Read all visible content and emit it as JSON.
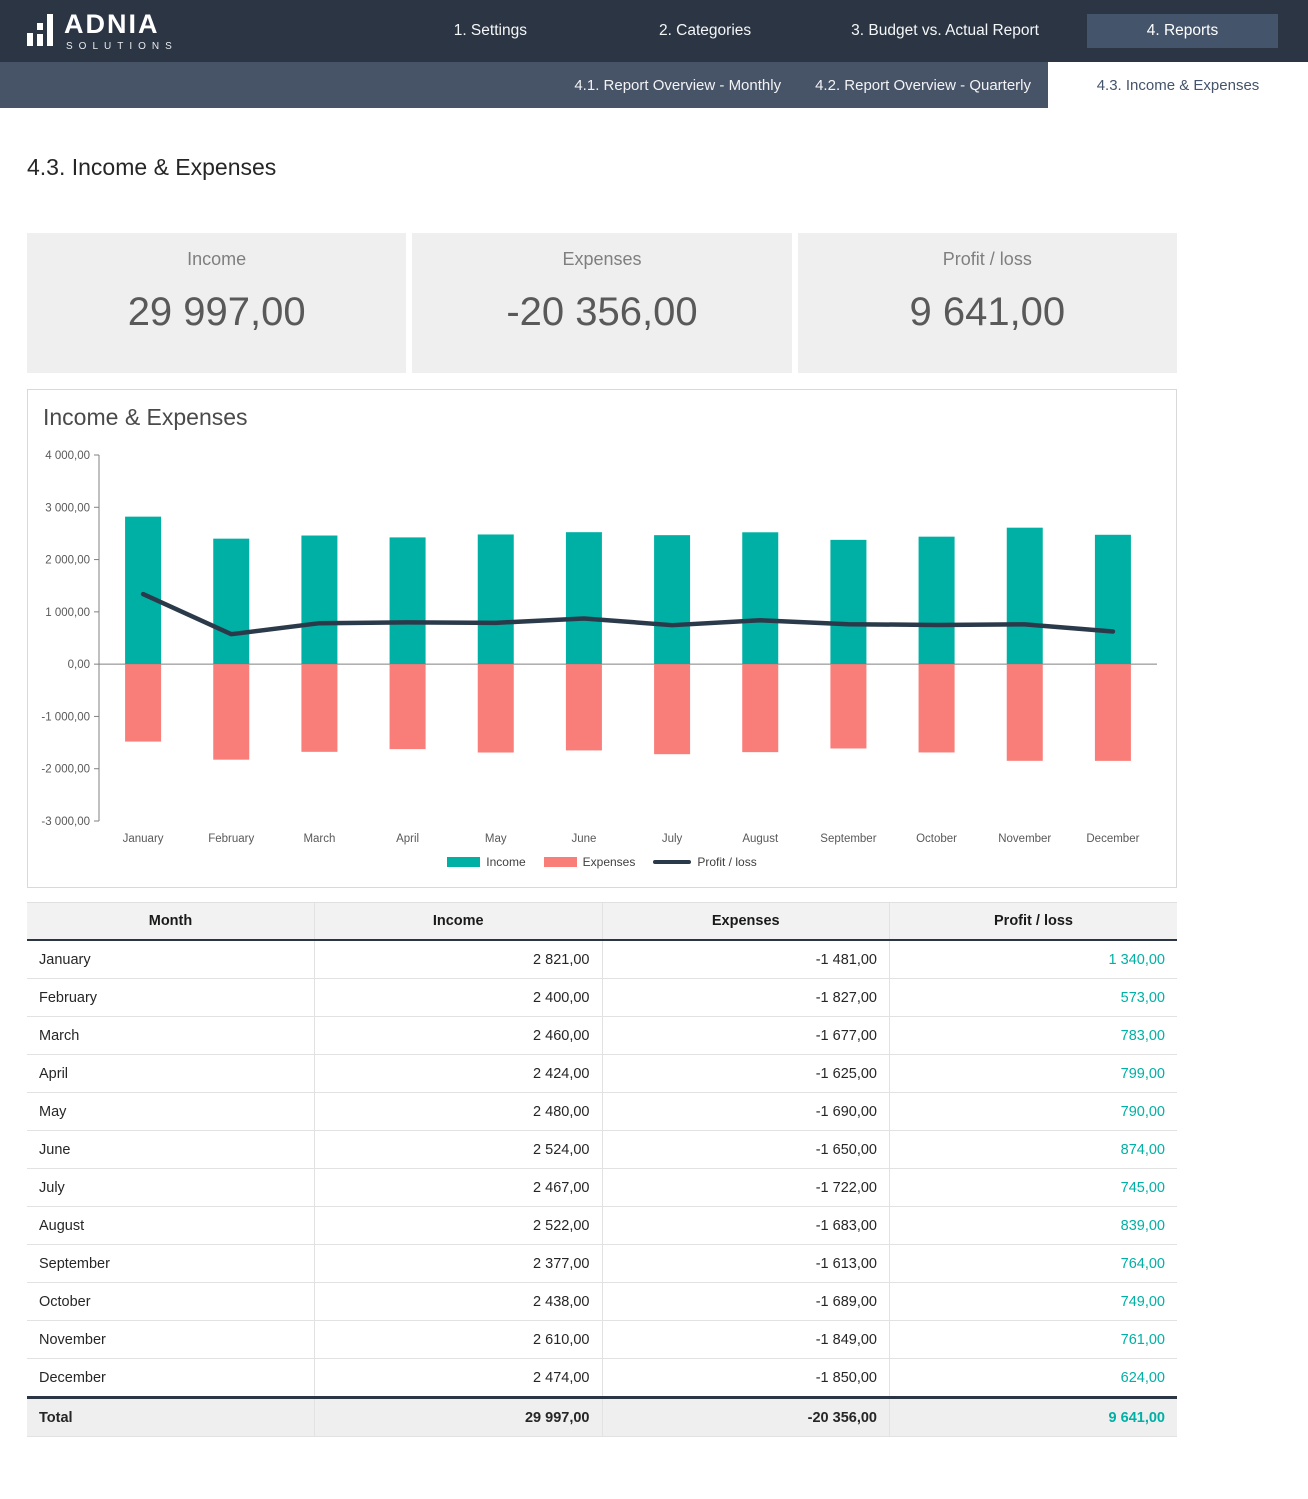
{
  "brand": {
    "name": "ADNIA",
    "tagline": "SOLUTIONS"
  },
  "nav": {
    "items": [
      {
        "label": "1. Settings",
        "active": false
      },
      {
        "label": "2. Categories",
        "active": false
      },
      {
        "label": "3. Budget vs. Actual Report",
        "active": false
      },
      {
        "label": "4. Reports",
        "active": true
      }
    ]
  },
  "subnav": {
    "items": [
      {
        "label": "4.1. Report Overview - Monthly",
        "active": false
      },
      {
        "label": "4.2. Report Overview - Quarterly",
        "active": false
      },
      {
        "label": "4.3. Income & Expenses",
        "active": true
      }
    ]
  },
  "page": {
    "title": "4.3. Income & Expenses"
  },
  "kpis": [
    {
      "label": "Income",
      "value": "29 997,00"
    },
    {
      "label": "Expenses",
      "value": "-20 356,00"
    },
    {
      "label": "Profit / loss",
      "value": "9 641,00"
    }
  ],
  "chart_data": {
    "type": "bar",
    "title": "Income & Expenses",
    "categories": [
      "January",
      "February",
      "March",
      "April",
      "May",
      "June",
      "July",
      "August",
      "September",
      "October",
      "November",
      "December"
    ],
    "series": [
      {
        "name": "Income",
        "type": "bar",
        "color": "#00b0a4",
        "values": [
          2821,
          2400,
          2460,
          2424,
          2480,
          2524,
          2467,
          2522,
          2377,
          2438,
          2610,
          2474
        ]
      },
      {
        "name": "Expenses",
        "type": "bar",
        "color": "#f97d78",
        "values": [
          -1481,
          -1827,
          -1677,
          -1625,
          -1690,
          -1650,
          -1722,
          -1683,
          -1613,
          -1689,
          -1849,
          -1850
        ]
      },
      {
        "name": "Profit / loss",
        "type": "line",
        "color": "#2b3a4a",
        "values": [
          1340,
          573,
          783,
          799,
          790,
          874,
          745,
          839,
          764,
          749,
          761,
          624
        ]
      }
    ],
    "ylim": [
      -3000,
      4000
    ],
    "yticks": [
      {
        "value": 4000,
        "label": "4 000,00"
      },
      {
        "value": 3000,
        "label": "3 000,00"
      },
      {
        "value": 2000,
        "label": "2 000,00"
      },
      {
        "value": 1000,
        "label": "1 000,00"
      },
      {
        "value": 0,
        "label": "0,00"
      },
      {
        "value": -1000,
        "label": "-1 000,00"
      },
      {
        "value": -2000,
        "label": "-2 000,00"
      },
      {
        "value": -3000,
        "label": "-3 000,00"
      }
    ],
    "grid": false,
    "legend_position": "bottom",
    "axis_color": "#808080"
  },
  "table": {
    "headers": [
      "Month",
      "Income",
      "Expenses",
      "Profit / loss"
    ],
    "rows": [
      [
        "January",
        "2 821,00",
        "-1 481,00",
        "1 340,00"
      ],
      [
        "February",
        "2 400,00",
        "-1 827,00",
        "573,00"
      ],
      [
        "March",
        "2 460,00",
        "-1 677,00",
        "783,00"
      ],
      [
        "April",
        "2 424,00",
        "-1 625,00",
        "799,00"
      ],
      [
        "May",
        "2 480,00",
        "-1 690,00",
        "790,00"
      ],
      [
        "June",
        "2 524,00",
        "-1 650,00",
        "874,00"
      ],
      [
        "July",
        "2 467,00",
        "-1 722,00",
        "745,00"
      ],
      [
        "August",
        "2 522,00",
        "-1 683,00",
        "839,00"
      ],
      [
        "September",
        "2 377,00",
        "-1 613,00",
        "764,00"
      ],
      [
        "October",
        "2 438,00",
        "-1 689,00",
        "749,00"
      ],
      [
        "November",
        "2 610,00",
        "-1 849,00",
        "761,00"
      ],
      [
        "December",
        "2 474,00",
        "-1 850,00",
        "624,00"
      ]
    ],
    "total": [
      "Total",
      "29 997,00",
      "-20 356,00",
      "9 641,00"
    ]
  },
  "colors": {
    "teal": "#00b0a4",
    "salmon": "#f97d78",
    "topbar": "#2b3543",
    "slate": "#44546a",
    "line": "#2b3a4a"
  }
}
